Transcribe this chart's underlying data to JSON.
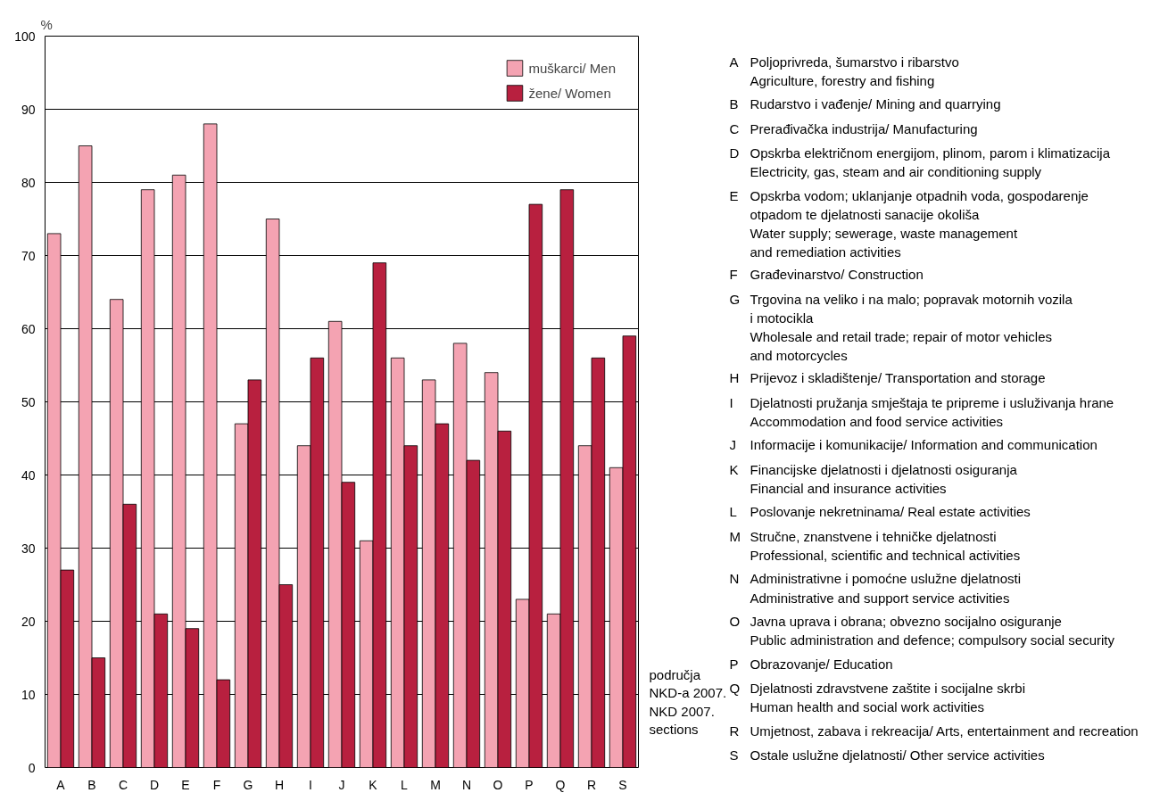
{
  "chart_data": {
    "type": "bar",
    "categories": [
      "A",
      "B",
      "C",
      "D",
      "E",
      "F",
      "G",
      "H",
      "I",
      "J",
      "K",
      "L",
      "M",
      "N",
      "O",
      "P",
      "Q",
      "R",
      "S"
    ],
    "series": [
      {
        "name": "muškarci/ Men",
        "color": "#f4a3b2",
        "values": [
          73,
          85,
          64,
          79,
          81,
          88,
          47,
          75,
          44,
          61,
          31,
          56,
          53,
          58,
          54,
          23,
          21,
          44,
          41
        ]
      },
      {
        "name": "žene/ Women",
        "color": "#b8203f",
        "values": [
          27,
          15,
          36,
          21,
          19,
          12,
          53,
          25,
          56,
          39,
          69,
          44,
          47,
          42,
          46,
          77,
          79,
          56,
          59
        ]
      }
    ],
    "ylim": [
      0,
      100
    ],
    "yticks": [
      0,
      10,
      20,
      30,
      40,
      50,
      60,
      70,
      80,
      90,
      100
    ],
    "grid": "y",
    "legend": "top right",
    "ylabel": "%",
    "xlabel": "područja\nNKD-a 2007.\nNKD 2007.\nsections",
    "annotations": [
      "A Poljoprivreda, šumarstvo i ribarstvo\nAgriculture, forestry and fishing",
      "B Rudarstvo i vađenje/ Mining and quarrying",
      "C Prerađivačka industrija/ Manufacturing",
      "D Opskrba električnom energijom, plinom, parom i klimatizacija\nElectricity, gas, steam and air conditioning supply",
      "E Opskrba vodom; uklanjanje otpadnih voda, gospodarenje\notpadom te djelatnosti sanacije okoliša\nWater supply; sewerage, waste management\nand remediation activities",
      "F Građevinarstvo/ Construction",
      "G Trgovina na veliko i na malo; popravak motornih vozila\ni motocikla\nWholesale and retail trade; repair of motor vehicles\nand motorcycles",
      "H Prijevoz i skladištenje/ Transportation and storage",
      "I Djelatnosti pružanja smještaja te pripreme i usluživanja hrane\nAccommodation and food service activities",
      "J Informacije i komunikacije/ Information and communication",
      "K Financijske djelatnosti i djelatnosti osiguranja\nFinancial and insurance activities",
      "L Poslovanje nekretninama/ Real estate activities",
      "M Stručne, znanstvene i tehničke djelatnosti\nProfessional, scientific and technical activities",
      "N Administrativne i pomoćne uslužne djelatnosti\nAdministrative and support service activities",
      "O Javna uprava i obrana; obvezno socijalno osiguranje\nPublic administration and defence; compulsory social security",
      "P Obrazovanje/ Education",
      "Q Djelatnosti zdravstvene zaštite i socijalne skrbi\nHuman health and social work activities",
      "R Umjetnost, zabava i rekreacija/ Arts, entertainment and recreation",
      "S Ostale uslužne djelatnosti/ Other service activities"
    ]
  }
}
